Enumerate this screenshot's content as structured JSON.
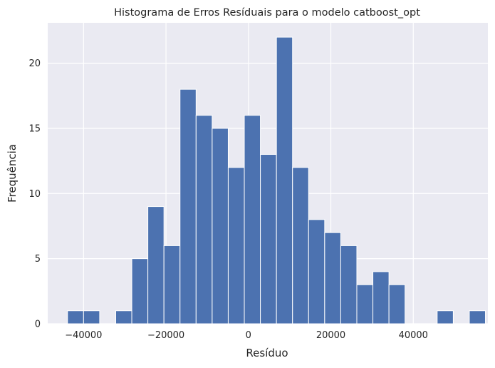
{
  "chart_data": {
    "type": "bar",
    "title": "Histograma de Erros Resíduais para o modelo catboost_opt",
    "xlabel": "Resíduo",
    "ylabel": "Frequência",
    "xlim": [
      -48700,
      58100
    ],
    "ylim": [
      0,
      23.1
    ],
    "xticks": [
      -40000,
      -20000,
      0,
      20000,
      40000
    ],
    "xtick_labels": [
      "−40000",
      "−20000",
      "0",
      "20000",
      "40000"
    ],
    "yticks": [
      0,
      5,
      10,
      15,
      20
    ],
    "ytick_labels": [
      "0",
      "5",
      "10",
      "15",
      "20"
    ],
    "grid": true,
    "background": "#eaeaf2",
    "bar_color": "#4c72b0",
    "bins": {
      "start": -43900,
      "width": 3900,
      "counts": [
        1,
        1,
        0,
        1,
        5,
        9,
        6,
        18,
        16,
        15,
        12,
        16,
        13,
        22,
        12,
        8,
        7,
        6,
        3,
        4,
        3,
        0,
        0,
        1,
        0,
        1
      ]
    }
  }
}
